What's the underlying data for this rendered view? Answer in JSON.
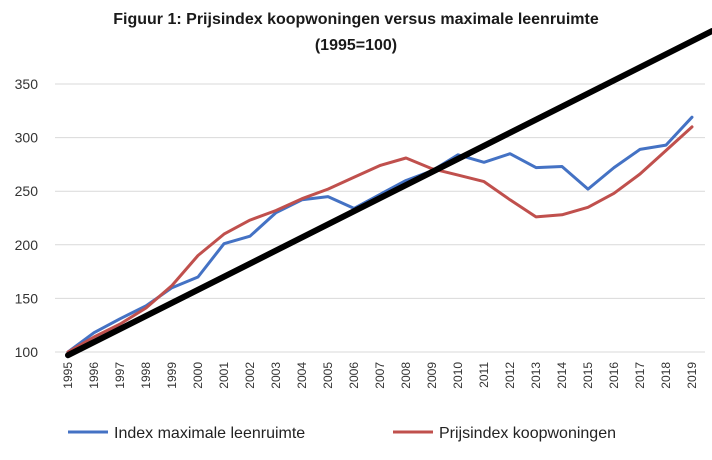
{
  "chart_data": {
    "type": "line",
    "title": "Figuur 1: Prijsindex koopwoningen versus maximale leenruimte",
    "subtitle": "(1995=100)",
    "xlabel": "",
    "ylabel": "",
    "categories": [
      "1995",
      "1996",
      "1997",
      "1998",
      "1999",
      "2000",
      "2001",
      "2002",
      "2003",
      "2004",
      "2005",
      "2006",
      "2007",
      "2008",
      "2009",
      "2010",
      "2011",
      "2012",
      "2013",
      "2014",
      "2015",
      "2016",
      "2017",
      "2018",
      "2019"
    ],
    "ylim": [
      100,
      350
    ],
    "yticks": [
      100,
      150,
      200,
      250,
      300,
      350
    ],
    "grid": true,
    "legend": "bottom",
    "series": [
      {
        "name": "Index maximale leenruimte",
        "color": "#4472c4",
        "values": [
          100,
          118,
          131,
          143,
          160,
          170,
          201,
          208,
          230,
          242,
          245,
          234,
          247,
          260,
          269,
          284,
          277,
          285,
          272,
          273,
          252,
          272,
          289,
          293,
          319
        ]
      },
      {
        "name": "Prijsindex koopwoningen",
        "color": "#c0504d",
        "values": [
          100,
          114,
          126,
          141,
          162,
          190,
          210,
          223,
          232,
          243,
          252,
          263,
          274,
          281,
          271,
          265,
          259,
          242,
          226,
          228,
          235,
          248,
          266,
          288,
          310
        ]
      }
    ],
    "annotations": [
      {
        "type": "trend-line",
        "color": "#000000",
        "x_start": "1995",
        "y_start": 97,
        "x_end": "2019",
        "y_end": 390
      }
    ]
  }
}
